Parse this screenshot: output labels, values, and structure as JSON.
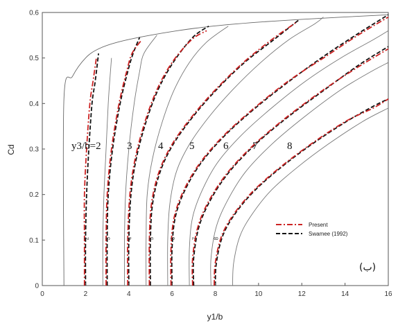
{
  "chart_data": {
    "type": "line",
    "xlabel": "y1/b",
    "ylabel": "Cd",
    "xlim": [
      0,
      16
    ],
    "ylim": [
      0,
      0.6
    ],
    "x_ticks": [
      "0",
      "2",
      "4",
      "6",
      "8",
      "10",
      "12",
      "14",
      "16"
    ],
    "y_ticks": [
      "0",
      "0.1",
      "0.2",
      "0.3",
      "0.4",
      "0.5",
      "0.6"
    ],
    "grid": false,
    "legend_position": "bottom-right",
    "curve_label_prefix": "y3/b=2",
    "curve_labels": [
      "3",
      "4",
      "5",
      "6",
      "7",
      "8"
    ],
    "panel_mark": "(ب)",
    "legend": [
      {
        "label": "Present",
        "color": "#cc2222",
        "dash": "dash-dot"
      },
      {
        "label": "Swamee (1992)",
        "color": "#111111",
        "dash": "dashed"
      }
    ],
    "inline_labels": [
      "2",
      "3",
      "4",
      "5",
      "6",
      "7",
      "8"
    ],
    "envelope": [
      [
        1.0,
        0.0
      ],
      [
        1.0,
        0.41
      ],
      [
        1.4,
        0.46
      ],
      [
        2.0,
        0.5
      ],
      [
        2.6,
        0.52
      ],
      [
        3.5,
        0.535
      ],
      [
        5.0,
        0.55
      ],
      [
        7.0,
        0.565
      ],
      [
        9.0,
        0.575
      ],
      [
        12.0,
        0.585
      ],
      [
        16.0,
        0.595
      ]
    ],
    "series": [
      {
        "name": "Present",
        "curves": [
          [
            [
              1.95,
              0.0
            ],
            [
              1.95,
              0.1
            ],
            [
              1.95,
              0.2
            ],
            [
              2.05,
              0.3
            ],
            [
              2.2,
              0.4
            ],
            [
              2.35,
              0.45
            ],
            [
              2.5,
              0.5
            ]
          ],
          [
            [
              2.95,
              0.0
            ],
            [
              2.95,
              0.1
            ],
            [
              3.0,
              0.2
            ],
            [
              3.2,
              0.3
            ],
            [
              3.55,
              0.4
            ],
            [
              3.9,
              0.47
            ],
            [
              4.15,
              0.51
            ],
            [
              4.6,
              0.54
            ]
          ],
          [
            [
              3.95,
              0.0
            ],
            [
              3.95,
              0.1
            ],
            [
              4.05,
              0.2
            ],
            [
              4.3,
              0.28
            ],
            [
              4.75,
              0.36
            ],
            [
              5.3,
              0.43
            ],
            [
              6.0,
              0.49
            ],
            [
              6.9,
              0.54
            ],
            [
              7.6,
              0.56
            ]
          ],
          [
            [
              4.95,
              0.0
            ],
            [
              4.95,
              0.1
            ],
            [
              5.05,
              0.18
            ],
            [
              5.4,
              0.25
            ],
            [
              6.0,
              0.31
            ],
            [
              6.9,
              0.37
            ],
            [
              8.0,
              0.43
            ],
            [
              9.3,
              0.49
            ],
            [
              10.6,
              0.54
            ],
            [
              11.8,
              0.58
            ]
          ],
          [
            [
              5.95,
              0.0
            ],
            [
              5.95,
              0.08
            ],
            [
              6.1,
              0.15
            ],
            [
              6.55,
              0.21
            ],
            [
              7.3,
              0.27
            ],
            [
              8.4,
              0.33
            ],
            [
              9.8,
              0.39
            ],
            [
              11.4,
              0.45
            ],
            [
              13.0,
              0.5
            ],
            [
              14.6,
              0.55
            ],
            [
              16.0,
              0.59
            ]
          ],
          [
            [
              6.95,
              0.0
            ],
            [
              6.95,
              0.06
            ],
            [
              7.2,
              0.13
            ],
            [
              7.75,
              0.19
            ],
            [
              8.6,
              0.25
            ],
            [
              9.8,
              0.31
            ],
            [
              11.3,
              0.37
            ],
            [
              13.0,
              0.43
            ],
            [
              14.6,
              0.48
            ],
            [
              16.0,
              0.52
            ]
          ],
          [
            [
              7.95,
              0.0
            ],
            [
              8.0,
              0.05
            ],
            [
              8.3,
              0.11
            ],
            [
              8.9,
              0.16
            ],
            [
              9.8,
              0.21
            ],
            [
              11.0,
              0.26
            ],
            [
              12.4,
              0.31
            ],
            [
              14.0,
              0.36
            ],
            [
              15.3,
              0.39
            ],
            [
              16.0,
              0.41
            ]
          ]
        ]
      },
      {
        "name": "Swamee (1992)",
        "curves": [
          [
            [
              2.0,
              0.0
            ],
            [
              2.0,
              0.1
            ],
            [
              2.05,
              0.2
            ],
            [
              2.15,
              0.3
            ],
            [
              2.3,
              0.4
            ],
            [
              2.45,
              0.45
            ],
            [
              2.6,
              0.51
            ]
          ],
          [
            [
              3.0,
              0.0
            ],
            [
              3.0,
              0.1
            ],
            [
              3.05,
              0.2
            ],
            [
              3.25,
              0.3
            ],
            [
              3.6,
              0.4
            ],
            [
              3.95,
              0.47
            ],
            [
              4.2,
              0.51
            ],
            [
              4.5,
              0.545
            ]
          ],
          [
            [
              4.0,
              0.0
            ],
            [
              4.0,
              0.1
            ],
            [
              4.1,
              0.2
            ],
            [
              4.35,
              0.28
            ],
            [
              4.8,
              0.36
            ],
            [
              5.35,
              0.43
            ],
            [
              6.05,
              0.49
            ],
            [
              6.95,
              0.545
            ],
            [
              7.7,
              0.57
            ]
          ],
          [
            [
              5.0,
              0.0
            ],
            [
              5.0,
              0.1
            ],
            [
              5.1,
              0.18
            ],
            [
              5.45,
              0.25
            ],
            [
              6.05,
              0.31
            ],
            [
              6.95,
              0.37
            ],
            [
              8.05,
              0.43
            ],
            [
              9.35,
              0.49
            ],
            [
              10.7,
              0.54
            ],
            [
              11.9,
              0.585
            ]
          ],
          [
            [
              6.0,
              0.0
            ],
            [
              6.0,
              0.08
            ],
            [
              6.15,
              0.15
            ],
            [
              6.6,
              0.21
            ],
            [
              7.35,
              0.27
            ],
            [
              8.45,
              0.33
            ],
            [
              9.85,
              0.39
            ],
            [
              11.45,
              0.45
            ],
            [
              13.05,
              0.505
            ],
            [
              14.65,
              0.555
            ],
            [
              16.0,
              0.595
            ]
          ],
          [
            [
              7.0,
              0.0
            ],
            [
              7.0,
              0.06
            ],
            [
              7.25,
              0.13
            ],
            [
              7.8,
              0.19
            ],
            [
              8.65,
              0.25
            ],
            [
              9.85,
              0.31
            ],
            [
              11.35,
              0.37
            ],
            [
              13.05,
              0.43
            ],
            [
              14.65,
              0.485
            ],
            [
              16.0,
              0.525
            ]
          ],
          [
            [
              8.0,
              0.0
            ],
            [
              8.05,
              0.05
            ],
            [
              8.35,
              0.11
            ],
            [
              8.95,
              0.16
            ],
            [
              9.85,
              0.21
            ],
            [
              11.05,
              0.26
            ],
            [
              12.45,
              0.31
            ],
            [
              14.05,
              0.36
            ],
            [
              15.35,
              0.395
            ],
            [
              16.0,
              0.41
            ]
          ]
        ]
      },
      {
        "name": "",
        "curves": [
          [
            [
              2.8,
              0.0
            ],
            [
              2.8,
              0.1
            ],
            [
              2.85,
              0.2
            ],
            [
              2.95,
              0.3
            ],
            [
              3.05,
              0.4
            ],
            [
              3.12,
              0.45
            ],
            [
              3.2,
              0.5
            ]
          ],
          [
            [
              3.8,
              0.0
            ],
            [
              3.8,
              0.1
            ],
            [
              3.85,
              0.2
            ],
            [
              4.0,
              0.3
            ],
            [
              4.25,
              0.4
            ],
            [
              4.5,
              0.47
            ],
            [
              4.7,
              0.51
            ],
            [
              5.3,
              0.55
            ]
          ],
          [
            [
              4.8,
              0.0
            ],
            [
              4.8,
              0.1
            ],
            [
              4.85,
              0.2
            ],
            [
              5.1,
              0.28
            ],
            [
              5.55,
              0.36
            ],
            [
              6.1,
              0.43
            ],
            [
              6.8,
              0.49
            ],
            [
              7.6,
              0.535
            ],
            [
              8.6,
              0.57
            ]
          ],
          [
            [
              5.8,
              0.0
            ],
            [
              5.8,
              0.1
            ],
            [
              5.9,
              0.18
            ],
            [
              6.2,
              0.25
            ],
            [
              6.8,
              0.31
            ],
            [
              7.7,
              0.37
            ],
            [
              8.8,
              0.43
            ],
            [
              10.1,
              0.49
            ],
            [
              11.4,
              0.54
            ],
            [
              12.6,
              0.575
            ],
            [
              13.0,
              0.59
            ]
          ],
          [
            [
              6.8,
              0.0
            ],
            [
              6.8,
              0.08
            ],
            [
              6.95,
              0.15
            ],
            [
              7.4,
              0.21
            ],
            [
              8.1,
              0.27
            ],
            [
              9.2,
              0.33
            ],
            [
              10.6,
              0.39
            ],
            [
              12.2,
              0.45
            ],
            [
              13.8,
              0.5
            ],
            [
              15.3,
              0.54
            ],
            [
              16.0,
              0.56
            ]
          ],
          [
            [
              7.8,
              0.0
            ],
            [
              7.8,
              0.06
            ],
            [
              8.05,
              0.13
            ],
            [
              8.6,
              0.19
            ],
            [
              9.4,
              0.25
            ],
            [
              10.6,
              0.31
            ],
            [
              12.1,
              0.37
            ],
            [
              13.8,
              0.43
            ],
            [
              15.2,
              0.47
            ],
            [
              16.0,
              0.49
            ]
          ],
          [
            [
              8.8,
              0.0
            ],
            [
              8.85,
              0.05
            ],
            [
              9.15,
              0.11
            ],
            [
              9.75,
              0.16
            ],
            [
              10.6,
              0.21
            ],
            [
              11.8,
              0.26
            ],
            [
              13.2,
              0.31
            ],
            [
              14.8,
              0.36
            ],
            [
              16.0,
              0.39
            ]
          ]
        ]
      }
    ]
  }
}
